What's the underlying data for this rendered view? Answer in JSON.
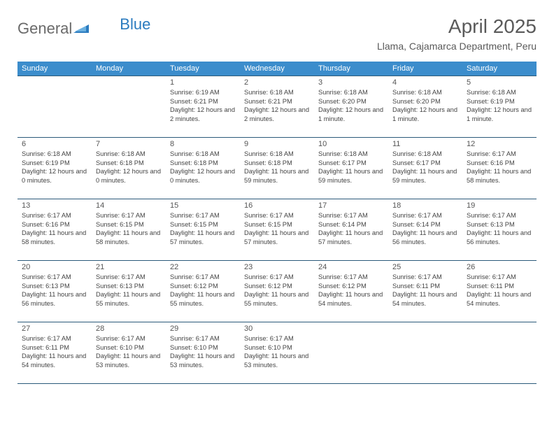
{
  "brand": {
    "part1": "General",
    "part2": "Blue"
  },
  "title": {
    "month": "April 2025",
    "location": "Llama, Cajamarca Department, Peru"
  },
  "colors": {
    "header_bg": "#3c8dcc",
    "header_text": "#ffffff",
    "row_border": "#2b5a7a",
    "logo_gray": "#6a6a6a",
    "logo_blue": "#2b7bbf",
    "body_text": "#444"
  },
  "weekdays": [
    "Sunday",
    "Monday",
    "Tuesday",
    "Wednesday",
    "Thursday",
    "Friday",
    "Saturday"
  ],
  "weeks": [
    [
      null,
      null,
      {
        "n": "1",
        "sr": "6:19 AM",
        "ss": "6:21 PM",
        "dl": "12 hours and 2 minutes."
      },
      {
        "n": "2",
        "sr": "6:18 AM",
        "ss": "6:21 PM",
        "dl": "12 hours and 2 minutes."
      },
      {
        "n": "3",
        "sr": "6:18 AM",
        "ss": "6:20 PM",
        "dl": "12 hours and 1 minute."
      },
      {
        "n": "4",
        "sr": "6:18 AM",
        "ss": "6:20 PM",
        "dl": "12 hours and 1 minute."
      },
      {
        "n": "5",
        "sr": "6:18 AM",
        "ss": "6:19 PM",
        "dl": "12 hours and 1 minute."
      }
    ],
    [
      {
        "n": "6",
        "sr": "6:18 AM",
        "ss": "6:19 PM",
        "dl": "12 hours and 0 minutes."
      },
      {
        "n": "7",
        "sr": "6:18 AM",
        "ss": "6:18 PM",
        "dl": "12 hours and 0 minutes."
      },
      {
        "n": "8",
        "sr": "6:18 AM",
        "ss": "6:18 PM",
        "dl": "12 hours and 0 minutes."
      },
      {
        "n": "9",
        "sr": "6:18 AM",
        "ss": "6:18 PM",
        "dl": "11 hours and 59 minutes."
      },
      {
        "n": "10",
        "sr": "6:18 AM",
        "ss": "6:17 PM",
        "dl": "11 hours and 59 minutes."
      },
      {
        "n": "11",
        "sr": "6:18 AM",
        "ss": "6:17 PM",
        "dl": "11 hours and 59 minutes."
      },
      {
        "n": "12",
        "sr": "6:17 AM",
        "ss": "6:16 PM",
        "dl": "11 hours and 58 minutes."
      }
    ],
    [
      {
        "n": "13",
        "sr": "6:17 AM",
        "ss": "6:16 PM",
        "dl": "11 hours and 58 minutes."
      },
      {
        "n": "14",
        "sr": "6:17 AM",
        "ss": "6:15 PM",
        "dl": "11 hours and 58 minutes."
      },
      {
        "n": "15",
        "sr": "6:17 AM",
        "ss": "6:15 PM",
        "dl": "11 hours and 57 minutes."
      },
      {
        "n": "16",
        "sr": "6:17 AM",
        "ss": "6:15 PM",
        "dl": "11 hours and 57 minutes."
      },
      {
        "n": "17",
        "sr": "6:17 AM",
        "ss": "6:14 PM",
        "dl": "11 hours and 57 minutes."
      },
      {
        "n": "18",
        "sr": "6:17 AM",
        "ss": "6:14 PM",
        "dl": "11 hours and 56 minutes."
      },
      {
        "n": "19",
        "sr": "6:17 AM",
        "ss": "6:13 PM",
        "dl": "11 hours and 56 minutes."
      }
    ],
    [
      {
        "n": "20",
        "sr": "6:17 AM",
        "ss": "6:13 PM",
        "dl": "11 hours and 56 minutes."
      },
      {
        "n": "21",
        "sr": "6:17 AM",
        "ss": "6:13 PM",
        "dl": "11 hours and 55 minutes."
      },
      {
        "n": "22",
        "sr": "6:17 AM",
        "ss": "6:12 PM",
        "dl": "11 hours and 55 minutes."
      },
      {
        "n": "23",
        "sr": "6:17 AM",
        "ss": "6:12 PM",
        "dl": "11 hours and 55 minutes."
      },
      {
        "n": "24",
        "sr": "6:17 AM",
        "ss": "6:12 PM",
        "dl": "11 hours and 54 minutes."
      },
      {
        "n": "25",
        "sr": "6:17 AM",
        "ss": "6:11 PM",
        "dl": "11 hours and 54 minutes."
      },
      {
        "n": "26",
        "sr": "6:17 AM",
        "ss": "6:11 PM",
        "dl": "11 hours and 54 minutes."
      }
    ],
    [
      {
        "n": "27",
        "sr": "6:17 AM",
        "ss": "6:11 PM",
        "dl": "11 hours and 54 minutes."
      },
      {
        "n": "28",
        "sr": "6:17 AM",
        "ss": "6:10 PM",
        "dl": "11 hours and 53 minutes."
      },
      {
        "n": "29",
        "sr": "6:17 AM",
        "ss": "6:10 PM",
        "dl": "11 hours and 53 minutes."
      },
      {
        "n": "30",
        "sr": "6:17 AM",
        "ss": "6:10 PM",
        "dl": "11 hours and 53 minutes."
      },
      null,
      null,
      null
    ]
  ],
  "labels": {
    "sunrise": "Sunrise:",
    "sunset": "Sunset:",
    "daylight": "Daylight:"
  }
}
